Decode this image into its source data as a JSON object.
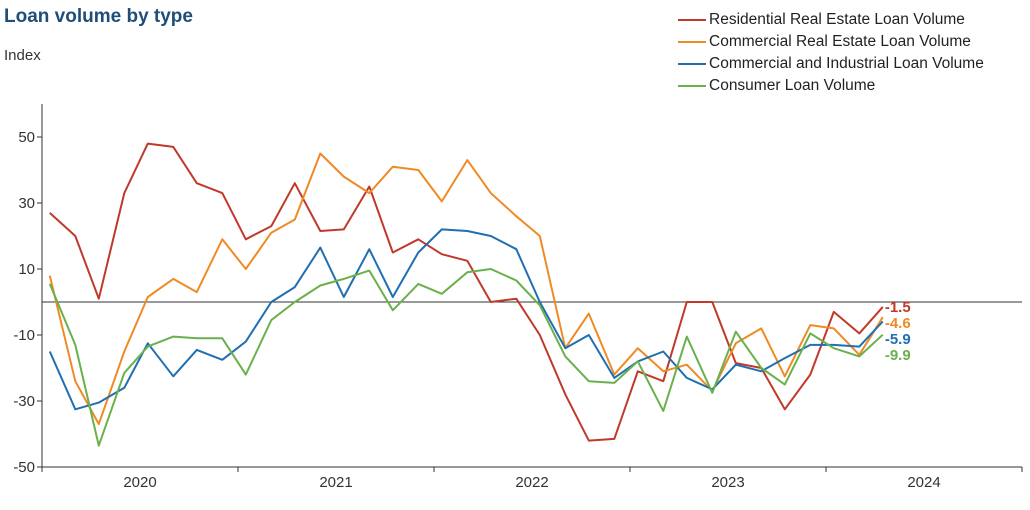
{
  "title": "Loan volume by type",
  "y_unit": "Index",
  "colors": {
    "residential": "#c0392b",
    "commercial_re": "#f08a24",
    "c_and_i": "#1f6fb2",
    "consumer": "#6ab04c",
    "axis": "#333333"
  },
  "chart_data": {
    "type": "line",
    "ylim": [
      -50,
      60
    ],
    "xlim": [
      2019.5,
      2024.5
    ],
    "yticks": [
      -50,
      -30,
      -10,
      10,
      30,
      50
    ],
    "ytick_labels": [
      "-50",
      "-30",
      "-10",
      "10",
      "30",
      "50"
    ],
    "xticks": [
      2020,
      2021,
      2022,
      2023,
      2024
    ],
    "xtick_labels": [
      "2020",
      "2021",
      "2022",
      "2023",
      "2024"
    ],
    "zero_line": true,
    "grid": false,
    "legend_position": "top-right",
    "x": [
      2019.54,
      2019.67,
      2019.79,
      2019.92,
      2020.04,
      2020.17,
      2020.29,
      2020.42,
      2020.54,
      2020.67,
      2020.79,
      2020.92,
      2021.04,
      2021.17,
      2021.29,
      2021.42,
      2021.54,
      2021.67,
      2021.79,
      2021.92,
      2022.04,
      2022.17,
      2022.29,
      2022.42,
      2022.54,
      2022.67,
      2022.79,
      2022.92,
      2023.04,
      2023.17,
      2023.29,
      2023.42,
      2023.54,
      2023.67,
      2023.79
    ],
    "series": [
      {
        "key": "residential",
        "name": "Residential Real Estate Loan Volume",
        "color": "#c0392b",
        "end_label": "-1.5",
        "values": [
          27,
          20,
          1,
          33,
          48,
          47,
          36,
          33,
          19,
          23,
          36,
          21.5,
          22,
          35,
          15,
          19,
          14.5,
          12.5,
          0,
          1,
          -10,
          -28,
          -42,
          -41.5,
          -21,
          -24,
          0,
          0,
          -18.5,
          -20,
          -32.5,
          -22,
          -3,
          -9.5,
          -1.5
        ]
      },
      {
        "key": "commercial_re",
        "name": "Commercial Real Estate Loan Volume",
        "color": "#f08a24",
        "end_label": "-4.6",
        "values": [
          8,
          -24,
          -37,
          -15,
          1.5,
          7,
          3,
          19,
          10,
          21,
          25,
          45,
          38,
          33,
          41,
          40,
          30.5,
          43,
          33,
          26,
          20,
          -14,
          -3.5,
          -22,
          -14,
          -21,
          -19,
          -27,
          -12.5,
          -8,
          -22.5,
          -7,
          -8,
          -16,
          -4.6
        ]
      },
      {
        "key": "c_and_i",
        "name": "Commercial and Industrial Loan Volume",
        "color": "#1f6fb2",
        "end_label": "-5.9",
        "values": [
          -15,
          -32.5,
          -30.5,
          -26,
          -12.5,
          -22.5,
          -14.5,
          -17.5,
          -12,
          0,
          4.5,
          16.5,
          1.5,
          16,
          1.5,
          15,
          22,
          21.5,
          20,
          16,
          0,
          -14,
          -10,
          -23,
          -18,
          -15,
          -23,
          -26.5,
          -19,
          -21,
          -17,
          -13,
          -13,
          -13.5,
          -5.9
        ]
      },
      {
        "key": "consumer",
        "name": "Consumer Loan Volume",
        "color": "#6ab04c",
        "end_label": "-9.9",
        "values": [
          5.5,
          -13,
          -43.5,
          -21.5,
          -13.5,
          -10.5,
          -11,
          -11,
          -22,
          -5.5,
          0,
          5,
          7,
          9.5,
          -2.5,
          5.5,
          2.5,
          9,
          10,
          6.5,
          -1,
          -16.5,
          -24,
          -24.5,
          -18,
          -33,
          -10.5,
          -27.5,
          -9,
          -20,
          -25,
          -9.5,
          -14,
          -16.5,
          -9.9
        ]
      }
    ]
  }
}
